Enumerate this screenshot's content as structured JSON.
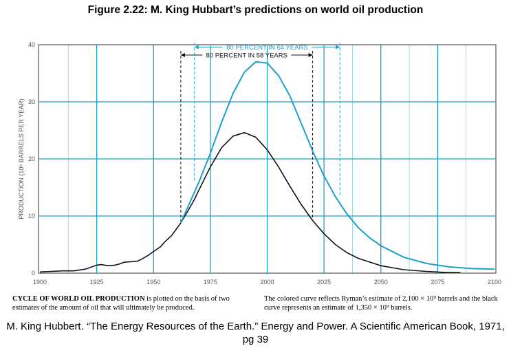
{
  "figure_title": "Figure 2.22: M. King Hubbart’s predictions on world oil production",
  "caption_left": {
    "bold": "CYCLE OF WORLD OIL PRODUCTION",
    "text": " is plotted on the basis of two estimates of the amount of oil that will ultimately be produced."
  },
  "caption_right": "The colored curve reflects Ryman’s estimate of 2,100 × 10⁹ barrels and the black curve represents an estimate of 1,350 × 10⁹ barrels.",
  "citation": "M. King Hubbert. “The Energy Resources of the Earth.” Energy and Power. A Scientific American Book, 1971, pg 39",
  "colors": {
    "cyan": "#1e9fc7",
    "black": "#111111",
    "grid": "#1e9fc7"
  },
  "chart_data": {
    "type": "line",
    "title": "",
    "xlabel": "",
    "ylabel": "PRODUCTION (10⁹ BARRELS PER YEAR)",
    "xlim": [
      1900,
      2100
    ],
    "ylim": [
      0,
      40
    ],
    "x_ticks": [
      1900,
      1925,
      1950,
      1975,
      2000,
      2025,
      2050,
      2075,
      2100
    ],
    "y_ticks": [
      0,
      10,
      20,
      30,
      40
    ],
    "grid": true,
    "series": [
      {
        "color": "#111111",
        "points": [
          [
            1900,
            0.2
          ],
          [
            1905,
            0.3
          ],
          [
            1910,
            0.4
          ],
          [
            1915,
            0.4
          ],
          [
            1920,
            0.7
          ],
          [
            1925,
            1.4
          ],
          [
            1927,
            1.5
          ],
          [
            1930,
            1.3
          ],
          [
            1933,
            1.4
          ],
          [
            1935,
            1.6
          ],
          [
            1937,
            1.9
          ],
          [
            1940,
            2.0
          ],
          [
            1943,
            2.1
          ],
          [
            1945,
            2.5
          ],
          [
            1948,
            3.2
          ],
          [
            1950,
            3.8
          ],
          [
            1953,
            4.6
          ],
          [
            1955,
            5.5
          ],
          [
            1958,
            6.6
          ],
          [
            1960,
            7.7
          ],
          [
            1962,
            8.8
          ],
          [
            1965,
            10.8
          ],
          [
            1968,
            12.9
          ],
          [
            1970,
            14.6
          ],
          [
            1975,
            18.6
          ],
          [
            1980,
            22.0
          ],
          [
            1985,
            24.0
          ],
          [
            1990,
            24.6
          ],
          [
            1995,
            23.8
          ],
          [
            2000,
            21.6
          ],
          [
            2005,
            18.6
          ],
          [
            2010,
            15.2
          ],
          [
            2015,
            12.0
          ],
          [
            2020,
            9.2
          ],
          [
            2025,
            6.9
          ],
          [
            2030,
            5.0
          ],
          [
            2035,
            3.6
          ],
          [
            2040,
            2.6
          ],
          [
            2050,
            1.3
          ],
          [
            2060,
            0.6
          ],
          [
            2070,
            0.3
          ],
          [
            2080,
            0.1
          ],
          [
            2085,
            0.1
          ]
        ]
      },
      {
        "color": "#1e9fc7",
        "points": [
          [
            1962,
            8.8
          ],
          [
            1965,
            11.5
          ],
          [
            1970,
            16.0
          ],
          [
            1975,
            21.0
          ],
          [
            1980,
            26.5
          ],
          [
            1985,
            31.5
          ],
          [
            1990,
            35.2
          ],
          [
            1995,
            37.0
          ],
          [
            2000,
            36.8
          ],
          [
            2005,
            34.6
          ],
          [
            2010,
            31.0
          ],
          [
            2015,
            26.2
          ],
          [
            2020,
            21.4
          ],
          [
            2025,
            17.0
          ],
          [
            2030,
            13.4
          ],
          [
            2035,
            10.4
          ],
          [
            2040,
            8.0
          ],
          [
            2045,
            6.2
          ],
          [
            2050,
            4.8
          ],
          [
            2060,
            2.8
          ],
          [
            2070,
            1.7
          ],
          [
            2080,
            1.1
          ],
          [
            2090,
            0.8
          ],
          [
            2100,
            0.7
          ]
        ]
      }
    ],
    "annotations": [
      {
        "text": "80 PERCENT IN 64 YEARS",
        "from": 1968,
        "to": 2032,
        "y": 39.6,
        "color": "#1e9fc7"
      },
      {
        "text": "80 PERCENT IN 58 YEARS",
        "from": 1962,
        "to": 2020,
        "y": 38.2,
        "color": "#111111"
      }
    ]
  }
}
